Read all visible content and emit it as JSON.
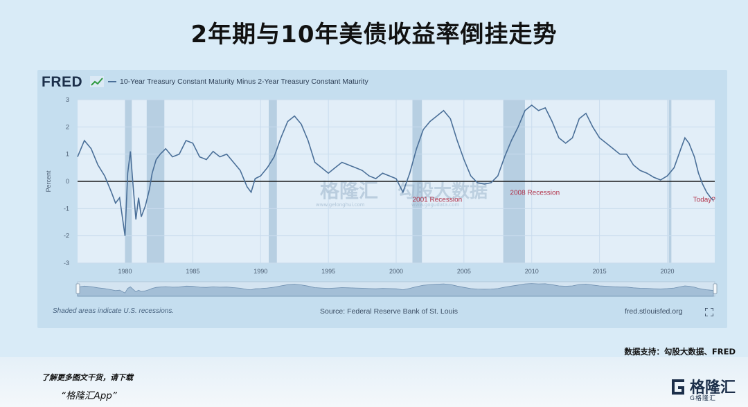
{
  "headline": "2年期与10年美债收益率倒挂走势",
  "fred": {
    "logo": "FRED",
    "series_title": "10-Year Treasury Constant Maturity Minus 2-Year Treasury Constant Maturity",
    "footer_left": "Shaded areas indicate U.S. recessions.",
    "footer_source": "Source: Federal Reserve Bank of St. Louis",
    "footer_site": "fred.stlouisfed.org"
  },
  "chart_data": {
    "type": "line",
    "title": "10-Year Treasury Constant Maturity Minus 2-Year Treasury Constant Maturity",
    "ylabel": "Percent",
    "xlabel": "",
    "xlim": [
      1976.5,
      2023.5
    ],
    "ylim": [
      -3,
      3
    ],
    "y_ticks": [
      "3",
      "2",
      "1",
      "0",
      "-1",
      "-2",
      "-3"
    ],
    "x_ticks": [
      "1980",
      "1985",
      "1990",
      "1995",
      "2000",
      "2005",
      "2010",
      "2015",
      "2020"
    ],
    "zero_line": 0,
    "grid": true,
    "recessions": [
      [
        1980.0,
        1980.5
      ],
      [
        1981.6,
        1982.9
      ],
      [
        1990.6,
        1991.2
      ],
      [
        2001.2,
        2001.9
      ],
      [
        2007.9,
        2009.5
      ],
      [
        2020.1,
        2020.3
      ]
    ],
    "annotations": [
      {
        "text": "2001 Recession",
        "x": 2001.2,
        "y": -0.75
      },
      {
        "text": "2008 Recession",
        "x": 2008.4,
        "y": -0.5
      },
      {
        "text": "Today?",
        "x": 2021.9,
        "y": -0.75
      }
    ],
    "series": [
      {
        "x": [
          1976.5,
          1977.0,
          1977.5,
          1978.0,
          1978.5,
          1979.0,
          1979.3,
          1979.6,
          1979.8,
          1980.0,
          1980.2,
          1980.4,
          1980.6,
          1980.8,
          1981.0,
          1981.2,
          1981.5,
          1981.8,
          1982.0,
          1982.3,
          1982.6,
          1983.0,
          1983.5,
          1984.0,
          1984.5,
          1985.0,
          1985.5,
          1986.0,
          1986.5,
          1987.0,
          1987.5,
          1988.0,
          1988.5,
          1989.0,
          1989.3,
          1989.6,
          1990.0,
          1990.5,
          1991.0,
          1991.5,
          1992.0,
          1992.5,
          1993.0,
          1993.5,
          1994.0,
          1994.5,
          1995.0,
          1995.5,
          1996.0,
          1996.5,
          1997.0,
          1997.5,
          1998.0,
          1998.5,
          1999.0,
          1999.5,
          2000.0,
          2000.5,
          2001.0,
          2001.5,
          2002.0,
          2002.5,
          2003.0,
          2003.5,
          2004.0,
          2004.5,
          2005.0,
          2005.5,
          2006.0,
          2006.5,
          2007.0,
          2007.5,
          2008.0,
          2008.5,
          2009.0,
          2009.5,
          2010.0,
          2010.5,
          2011.0,
          2011.5,
          2012.0,
          2012.5,
          2013.0,
          2013.5,
          2014.0,
          2014.5,
          2015.0,
          2015.5,
          2016.0,
          2016.5,
          2017.0,
          2017.5,
          2018.0,
          2018.5,
          2019.0,
          2019.5,
          2020.0,
          2020.5,
          2021.0,
          2021.3,
          2021.6,
          2022.0,
          2022.3,
          2022.6,
          2022.9,
          2023.2,
          2023.4
        ],
        "y": [
          0.9,
          1.5,
          1.2,
          0.6,
          0.2,
          -0.4,
          -0.8,
          -0.6,
          -1.3,
          -2.0,
          0.3,
          1.1,
          -0.2,
          -1.4,
          -0.6,
          -1.3,
          -0.9,
          -0.3,
          0.3,
          0.8,
          1.0,
          1.2,
          0.9,
          1.0,
          1.5,
          1.4,
          0.9,
          0.8,
          1.1,
          0.9,
          1.0,
          0.7,
          0.4,
          -0.2,
          -0.4,
          0.1,
          0.2,
          0.5,
          0.9,
          1.6,
          2.2,
          2.4,
          2.1,
          1.5,
          0.7,
          0.5,
          0.3,
          0.5,
          0.7,
          0.6,
          0.5,
          0.4,
          0.2,
          0.1,
          0.3,
          0.2,
          0.1,
          -0.4,
          0.3,
          1.2,
          1.9,
          2.2,
          2.4,
          2.6,
          2.3,
          1.5,
          0.8,
          0.2,
          -0.05,
          -0.1,
          -0.05,
          0.2,
          0.9,
          1.5,
          2.0,
          2.6,
          2.8,
          2.6,
          2.7,
          2.2,
          1.6,
          1.4,
          1.6,
          2.3,
          2.5,
          2.0,
          1.6,
          1.4,
          1.2,
          1.0,
          1.0,
          0.6,
          0.4,
          0.3,
          0.15,
          0.05,
          0.2,
          0.5,
          1.2,
          1.6,
          1.4,
          0.9,
          0.3,
          -0.1,
          -0.4,
          -0.6,
          -0.7
        ]
      }
    ]
  },
  "watermark": {
    "brand": "格隆汇",
    "partner": "勾股大数据",
    "url1": "www.gelonghui.com",
    "url2": "www.gogudata.com"
  },
  "data_support": "数据支持：勾股大数据、FRED",
  "promo": {
    "line1": "了解更多图文干货，请下载",
    "line2": "“格隆汇App”"
  },
  "brand": {
    "name": "格隆汇",
    "sub": "G格隆汇"
  }
}
